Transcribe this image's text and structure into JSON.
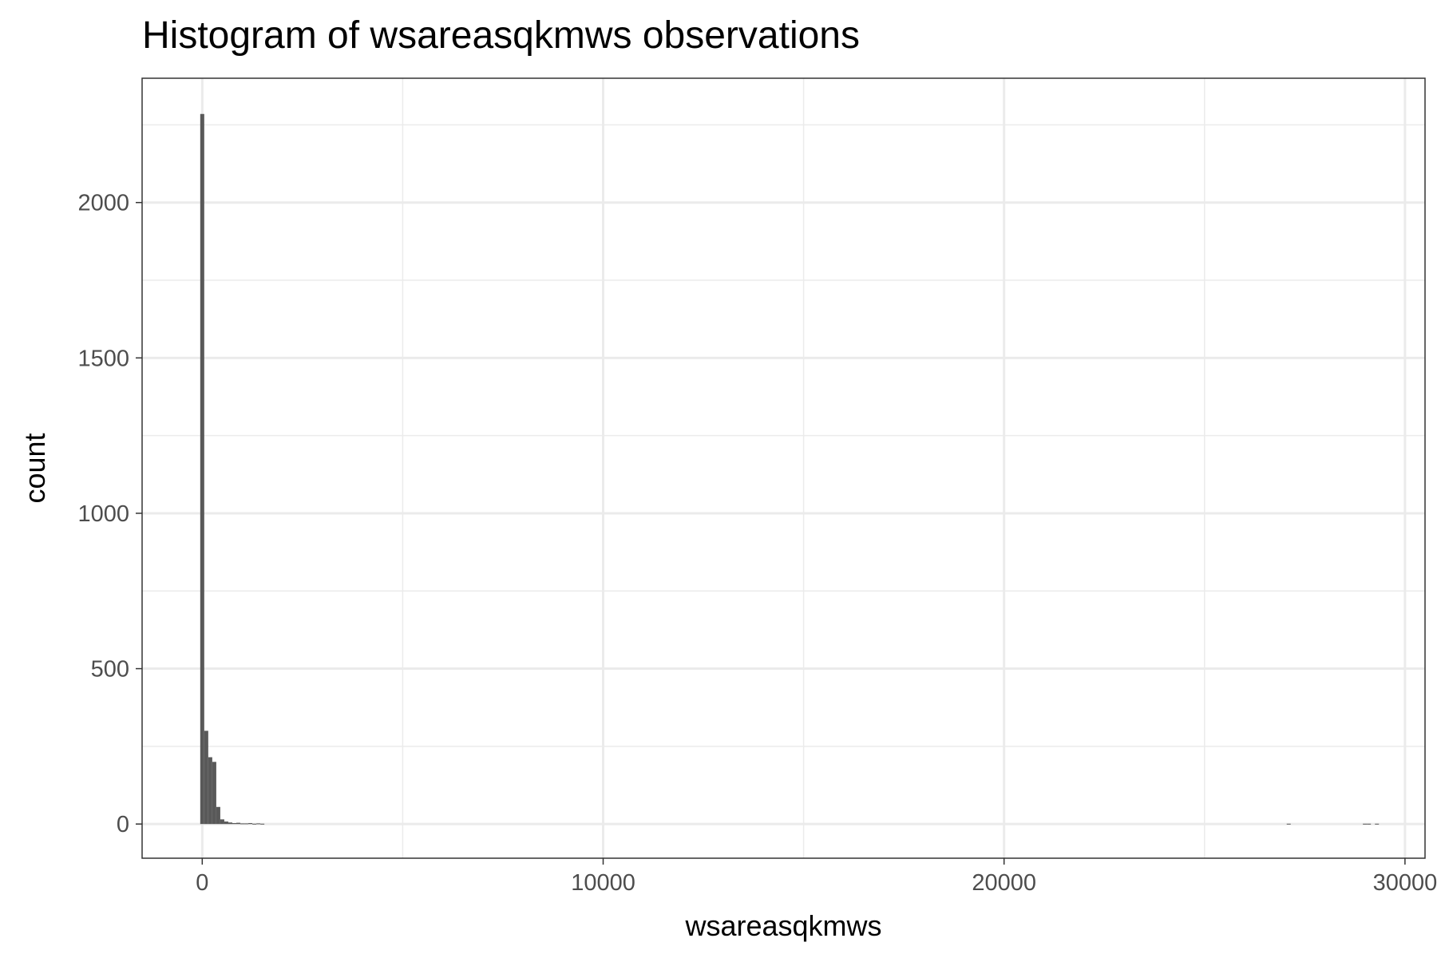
{
  "chart_data": {
    "type": "bar",
    "title": "Histogram of wsareasqkmws observations",
    "xlabel": "wsareasqkmws",
    "ylabel": "count",
    "xlim": [
      -1500,
      30500
    ],
    "ylim": [
      -110,
      2400
    ],
    "x_ticks": [
      0,
      10000,
      20000,
      30000
    ],
    "x_tick_labels": [
      "0",
      "10000",
      "20000",
      "30000"
    ],
    "y_ticks": [
      0,
      500,
      1000,
      1500,
      2000
    ],
    "y_tick_labels": [
      "0",
      "500",
      "1000",
      "1500",
      "2000"
    ],
    "grid": true,
    "bar_color": "#595959",
    "bin_width": 100,
    "bins": [
      {
        "x": 0,
        "count": 2285
      },
      {
        "x": 100,
        "count": 300
      },
      {
        "x": 200,
        "count": 215
      },
      {
        "x": 300,
        "count": 200
      },
      {
        "x": 400,
        "count": 55
      },
      {
        "x": 500,
        "count": 15
      },
      {
        "x": 600,
        "count": 8
      },
      {
        "x": 700,
        "count": 5
      },
      {
        "x": 800,
        "count": 3
      },
      {
        "x": 900,
        "count": 4
      },
      {
        "x": 1000,
        "count": 2
      },
      {
        "x": 1100,
        "count": 2
      },
      {
        "x": 1200,
        "count": 3
      },
      {
        "x": 1300,
        "count": 1
      },
      {
        "x": 1400,
        "count": 2
      },
      {
        "x": 1500,
        "count": 1
      },
      {
        "x": 27100,
        "count": 1
      },
      {
        "x": 29000,
        "count": 1
      },
      {
        "x": 29100,
        "count": 1
      },
      {
        "x": 29300,
        "count": 1
      }
    ]
  }
}
